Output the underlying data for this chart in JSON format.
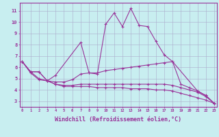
{
  "background_color": "#c8eef0",
  "line_color": "#993399",
  "grid_color": "#aaaacc",
  "xlabel": "Windchill (Refroidissement éolien,°C)",
  "xlabel_fontsize": 6,
  "xtick_labels": [
    "0",
    "1",
    "2",
    "3",
    "4",
    "5",
    "6",
    "7",
    "8",
    "9",
    "10",
    "11",
    "12",
    "13",
    "14",
    "15",
    "16",
    "17",
    "18",
    "19",
    "20",
    "21",
    "22",
    "23"
  ],
  "ytick_labels": [
    "3",
    "4",
    "5",
    "6",
    "7",
    "8",
    "9",
    "10",
    "11"
  ],
  "ytick_vals": [
    3,
    4,
    5,
    6,
    7,
    8,
    9,
    10,
    11
  ],
  "ylim": [
    2.5,
    11.7
  ],
  "xlim": [
    -0.3,
    23.3
  ],
  "series": [
    {
      "x": [
        0,
        1,
        2,
        3,
        4,
        7,
        8,
        9,
        10,
        11,
        12,
        13,
        14,
        15,
        16,
        17,
        18,
        21,
        22,
        23
      ],
      "y": [
        6.5,
        5.6,
        5.6,
        4.8,
        5.3,
        8.2,
        5.5,
        5.4,
        9.8,
        10.8,
        9.6,
        11.2,
        9.7,
        9.6,
        8.3,
        7.1,
        6.5,
        3.9,
        3.5,
        2.8
      ]
    },
    {
      "x": [
        0,
        1,
        2,
        3,
        4,
        5,
        6,
        7,
        8,
        9,
        10,
        11,
        12,
        13,
        14,
        15,
        16,
        17,
        18,
        19,
        20,
        21,
        22,
        23
      ],
      "y": [
        6.5,
        5.6,
        5.6,
        4.8,
        4.7,
        4.7,
        4.9,
        5.4,
        5.5,
        5.5,
        5.7,
        5.8,
        5.9,
        6.0,
        6.1,
        6.2,
        6.3,
        6.4,
        6.5,
        4.5,
        4.2,
        3.9,
        3.5,
        2.8
      ]
    },
    {
      "x": [
        0,
        1,
        2,
        3,
        4,
        5,
        6,
        7,
        8,
        9,
        10,
        11,
        12,
        13,
        14,
        15,
        16,
        17,
        18,
        19,
        20,
        21,
        22,
        23
      ],
      "y": [
        6.5,
        5.6,
        5.0,
        4.8,
        4.5,
        4.4,
        4.4,
        4.5,
        4.5,
        4.5,
        4.5,
        4.5,
        4.5,
        4.5,
        4.5,
        4.5,
        4.5,
        4.5,
        4.4,
        4.2,
        4.0,
        3.8,
        3.4,
        2.8
      ]
    },
    {
      "x": [
        0,
        1,
        2,
        3,
        4,
        5,
        6,
        7,
        8,
        9,
        10,
        11,
        12,
        13,
        14,
        15,
        16,
        17,
        18,
        19,
        20,
        21,
        22,
        23
      ],
      "y": [
        6.5,
        5.5,
        4.9,
        4.8,
        4.5,
        4.3,
        4.3,
        4.3,
        4.3,
        4.2,
        4.2,
        4.2,
        4.2,
        4.1,
        4.1,
        4.1,
        4.0,
        4.0,
        3.9,
        3.7,
        3.5,
        3.3,
        3.1,
        2.8
      ]
    }
  ]
}
